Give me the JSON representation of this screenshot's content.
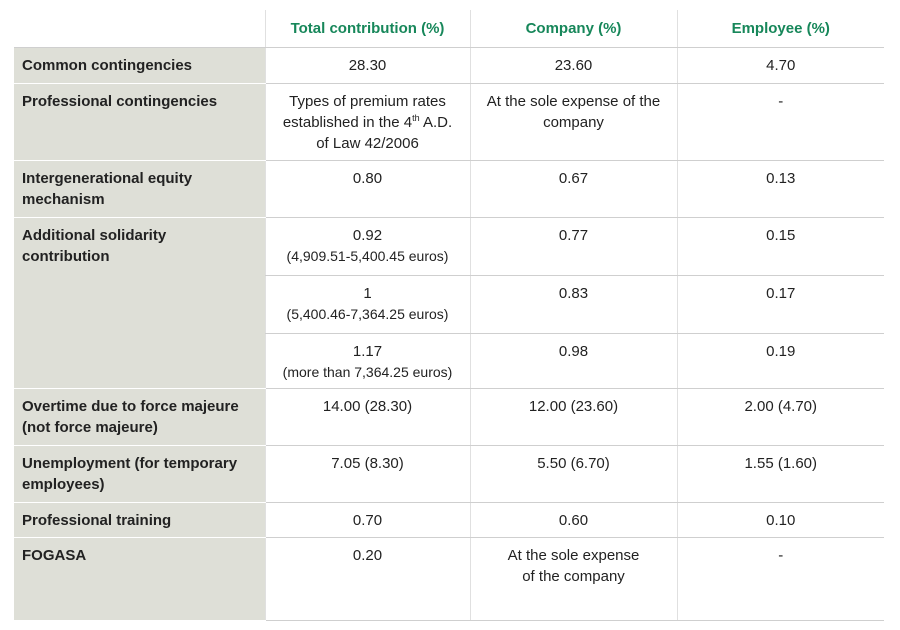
{
  "table": {
    "header": [
      "Total contribution (%)",
      "Company (%)",
      "Employee (%)"
    ],
    "rows": [
      {
        "label": "Common contingencies",
        "total": "28.30",
        "company": "23.60",
        "employee": "4.70"
      },
      {
        "label": "Professional contingencies",
        "total": {
          "text": "Types of premium rates established in the 4",
          "sup": "th",
          "rest": "A.D. of Law 42/2006"
        },
        "company": "At the sole expense of the company",
        "employee": "-"
      },
      {
        "label": "Intergenerational equity mechanism",
        "total": "0.80",
        "company": "0.67",
        "employee": "0.13"
      },
      {
        "label": "Additional solidarity contribution",
        "tiers": [
          {
            "total": "0.92",
            "range": "(4,909.51-5,400.45 euros)",
            "company": "0.77",
            "employee": "0.15"
          },
          {
            "total": "1",
            "range": "(5,400.46-7,364.25 euros)",
            "company": "0.83",
            "employee": "0.17"
          },
          {
            "total": "1.17",
            "range": "(more than 7,364.25 euros)",
            "company": "0.98",
            "employee": "0.19"
          }
        ]
      },
      {
        "label": "Overtime due to force majeure (not force majeure)",
        "total": "14.00 (28.30)",
        "company": "12.00 (23.60)",
        "employee": "2.00 (4.70)"
      },
      {
        "label": "Unemployment (for temporary employees)",
        "total": "7.05 (8.30)",
        "company": "5.50 (6.70)",
        "employee": "1.55 (1.60)"
      },
      {
        "label": "Professional training",
        "total": "0.70",
        "company": "0.60",
        "employee": "0.10"
      },
      {
        "label": "FOGASA",
        "total": "0.20",
        "company": "At the sole expense of the company",
        "employee": "-"
      }
    ]
  }
}
